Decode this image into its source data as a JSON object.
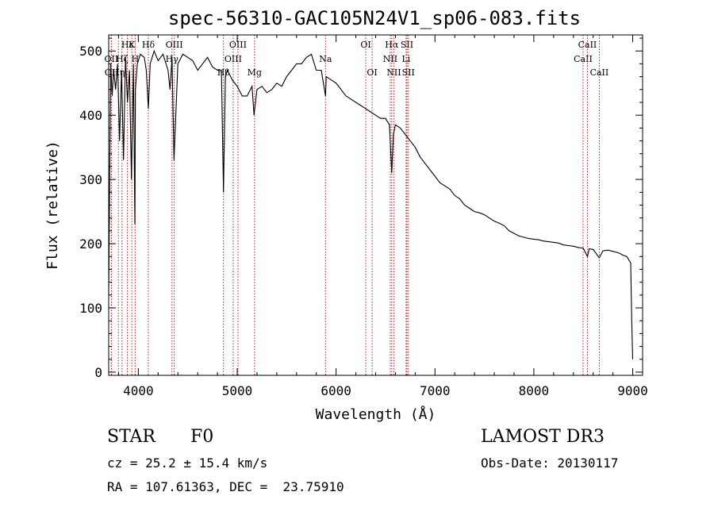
{
  "chart_data": {
    "type": "line",
    "title": "spec-56310-GAC105N24V1_sp06-083.fits",
    "xlabel": "Wavelength (Å)",
    "ylabel": "Flux (relative)",
    "xlim": [
      3700,
      9100
    ],
    "ylim": [
      -5,
      525
    ],
    "x_ticks": [
      4000,
      5000,
      6000,
      7000,
      8000,
      9000
    ],
    "y_ticks": [
      0,
      100,
      200,
      300,
      400,
      500
    ],
    "spectrum": {
      "x": [
        3700,
        3720,
        3735,
        3750,
        3770,
        3790,
        3810,
        3830,
        3850,
        3870,
        3890,
        3910,
        3930,
        3950,
        3965,
        3970,
        3990,
        4020,
        4060,
        4080,
        4101,
        4120,
        4160,
        4200,
        4250,
        4300,
        4320,
        4340,
        4360,
        4400,
        4450,
        4500,
        4550,
        4600,
        4650,
        4700,
        4750,
        4800,
        4840,
        4861,
        4880,
        4900,
        4950,
        5000,
        5050,
        5100,
        5150,
        5170,
        5200,
        5250,
        5300,
        5350,
        5400,
        5450,
        5500,
        5550,
        5600,
        5650,
        5700,
        5750,
        5780,
        5800,
        5850,
        5893,
        5900,
        5950,
        6000,
        6050,
        6100,
        6150,
        6200,
        6250,
        6300,
        6350,
        6400,
        6450,
        6500,
        6540,
        6563,
        6580,
        6600,
        6650,
        6700,
        6750,
        6800,
        6850,
        6900,
        6950,
        7000,
        7050,
        7100,
        7150,
        7200,
        7250,
        7300,
        7350,
        7400,
        7450,
        7500,
        7550,
        7600,
        7650,
        7700,
        7750,
        7800,
        7850,
        7900,
        7950,
        8000,
        8050,
        8100,
        8150,
        8200,
        8250,
        8300,
        8350,
        8400,
        8450,
        8500,
        8542,
        8560,
        8600,
        8662,
        8700,
        8750,
        8800,
        8850,
        8880,
        8900,
        8920,
        8940,
        8960,
        8980,
        8990,
        9000
      ],
      "y": [
        120,
        480,
        430,
        470,
        440,
        480,
        360,
        470,
        330,
        490,
        420,
        470,
        300,
        480,
        230,
        440,
        480,
        495,
        490,
        470,
        410,
        480,
        500,
        485,
        495,
        470,
        440,
        490,
        330,
        480,
        495,
        490,
        485,
        470,
        480,
        490,
        475,
        470,
        470,
        280,
        460,
        470,
        455,
        445,
        430,
        430,
        445,
        400,
        440,
        445,
        435,
        440,
        450,
        445,
        460,
        470,
        480,
        480,
        490,
        495,
        480,
        470,
        470,
        430,
        460,
        455,
        450,
        440,
        430,
        425,
        420,
        415,
        410,
        405,
        400,
        395,
        395,
        385,
        310,
        370,
        385,
        380,
        370,
        360,
        350,
        335,
        325,
        315,
        305,
        295,
        290,
        285,
        275,
        270,
        260,
        255,
        250,
        248,
        245,
        240,
        235,
        232,
        228,
        220,
        216,
        212,
        210,
        208,
        207,
        206,
        204,
        203,
        202,
        201,
        198,
        197,
        196,
        194,
        193,
        180,
        192,
        191,
        178,
        189,
        190,
        188,
        186,
        184,
        182,
        181,
        180,
        175,
        170,
        80,
        20
      ]
    },
    "lines": [
      {
        "name": "Hδ",
        "wavelength": 4101,
        "row": 1
      },
      {
        "name": "Hγ",
        "wavelength": 4340,
        "row": 2
      },
      {
        "name": "Hβ",
        "wavelength": 4861,
        "row": 3
      },
      {
        "name": "Hα",
        "wavelength": 6563,
        "row": 1
      },
      {
        "name": "K",
        "wavelength": 3934,
        "row": 1
      },
      {
        "name": "H",
        "wavelength": 3968,
        "row": 2
      },
      {
        "name": "OII",
        "wavelength": 3727,
        "row": 2
      },
      {
        "name": "OII",
        "wavelength": 3729,
        "row": 3
      },
      {
        "name": "OIII",
        "wavelength": 4363,
        "row": 1
      },
      {
        "name": "OIII",
        "wavelength": 4959,
        "row": 2
      },
      {
        "name": "OIII",
        "wavelength": 5007,
        "row": 1
      },
      {
        "name": "Mg",
        "wavelength": 5175,
        "row": 3
      },
      {
        "name": "Na",
        "wavelength": 5893,
        "row": 2
      },
      {
        "name": "OI",
        "wavelength": 6300,
        "row": 1
      },
      {
        "name": "OI",
        "wavelength": 6364,
        "row": 3
      },
      {
        "name": "NII",
        "wavelength": 6548,
        "row": 2
      },
      {
        "name": "NII",
        "wavelength": 6584,
        "row": 3
      },
      {
        "name": "SII",
        "wavelength": 6717,
        "row": 1
      },
      {
        "name": "Li",
        "wavelength": 6708,
        "row": 2
      },
      {
        "name": "SII",
        "wavelength": 6731,
        "row": 3
      },
      {
        "name": "CaII",
        "wavelength": 8498,
        "row": 2
      },
      {
        "name": "CaII",
        "wavelength": 8542,
        "row": 1
      },
      {
        "name": "CaII",
        "wavelength": 8662,
        "row": 3
      },
      {
        "name": "Hε",
        "wavelength": 3889,
        "row": 1
      },
      {
        "name": "Hζ",
        "wavelength": 3835,
        "row": 2
      },
      {
        "name": "Hη",
        "wavelength": 3798,
        "row": 3
      }
    ]
  },
  "info": {
    "class_label": "STAR",
    "subclass": "F0",
    "survey": "LAMOST DR3",
    "cz": "cz = 25.2 ± 15.4 km/s",
    "obs_date": "Obs-Date: 20130117",
    "radec": "RA = 107.61363, DEC =  23.75910"
  }
}
